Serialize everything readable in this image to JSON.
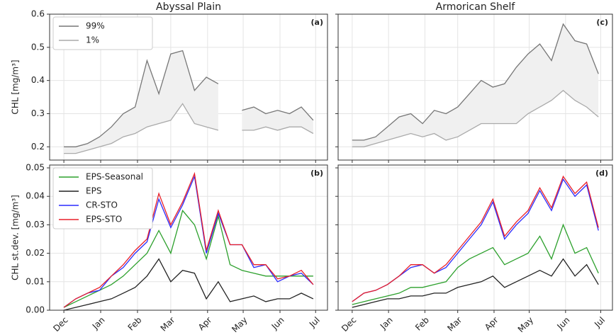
{
  "chart_data": [
    {
      "type": "line",
      "title": "Abyssal Plain",
      "label": "(a)",
      "ylabel": "CHL [mg/m³]",
      "fill_between": true,
      "legend": "upper left",
      "grid": true,
      "x": [
        0,
        10,
        20,
        30,
        40,
        50,
        60,
        70,
        80,
        90,
        100,
        110,
        120,
        130,
        140,
        150,
        160,
        170,
        180,
        190,
        200,
        210
      ],
      "xlim": [
        -12,
        222
      ],
      "xticks": [
        0,
        31,
        62,
        90,
        121,
        151,
        182,
        212
      ],
      "ylim": [
        0.16,
        0.6
      ],
      "yticks": [
        0.2,
        0.3,
        0.4,
        0.5,
        0.6
      ],
      "series": [
        {
          "name": "99%",
          "color": "#777777",
          "values": [
            0.2,
            0.2,
            0.21,
            0.23,
            0.26,
            0.3,
            0.32,
            0.46,
            0.36,
            0.48,
            0.49,
            0.37,
            0.41,
            0.39,
            null,
            0.31,
            0.32,
            0.3,
            0.31,
            0.3,
            0.32,
            0.28
          ]
        },
        {
          "name": "1%",
          "color": "#aaaaaa",
          "values": [
            0.18,
            0.18,
            0.19,
            0.2,
            0.21,
            0.23,
            0.24,
            0.26,
            0.27,
            0.28,
            0.33,
            0.27,
            0.26,
            0.25,
            null,
            0.25,
            0.25,
            0.26,
            0.25,
            0.26,
            0.26,
            0.24
          ]
        }
      ]
    },
    {
      "type": "line",
      "title": "Armorican Shelf",
      "label": "(c)",
      "fill_between": true,
      "grid": true,
      "x": [
        0,
        10,
        20,
        30,
        40,
        50,
        60,
        70,
        80,
        90,
        100,
        110,
        120,
        130,
        140,
        150,
        160,
        170,
        180,
        190,
        200,
        210
      ],
      "xlim": [
        -12,
        222
      ],
      "xticks": [
        0,
        31,
        62,
        90,
        121,
        151,
        182,
        212
      ],
      "ylim": [
        0.16,
        0.6
      ],
      "yticks": [
        0.2,
        0.3,
        0.4,
        0.5,
        0.6
      ],
      "series": [
        {
          "color": "#777777",
          "values": [
            0.22,
            0.22,
            0.23,
            0.26,
            0.29,
            0.3,
            0.27,
            0.31,
            0.3,
            0.32,
            0.36,
            0.4,
            0.38,
            0.39,
            0.44,
            0.48,
            0.51,
            0.46,
            0.57,
            0.52,
            0.51,
            0.42
          ]
        },
        {
          "color": "#aaaaaa",
          "values": [
            0.2,
            0.2,
            0.21,
            0.22,
            0.23,
            0.24,
            0.23,
            0.24,
            0.22,
            0.23,
            0.25,
            0.27,
            0.27,
            0.27,
            0.27,
            0.3,
            0.32,
            0.34,
            0.37,
            0.34,
            0.32,
            0.29
          ]
        }
      ]
    },
    {
      "type": "line",
      "label": "(b)",
      "ylabel": "CHL st.dev. [mg/m³]",
      "legend": "upper left",
      "grid": true,
      "x": [
        0,
        10,
        20,
        30,
        40,
        50,
        60,
        70,
        80,
        90,
        100,
        110,
        120,
        130,
        140,
        150,
        160,
        170,
        180,
        190,
        200,
        210
      ],
      "xlim": [
        -12,
        222
      ],
      "xticks": [
        {
          "value": 0,
          "label": "Dec"
        },
        {
          "value": 31,
          "label": "Jan"
        },
        {
          "value": 62,
          "label": "Feb"
        },
        {
          "value": 90,
          "label": "Mar"
        },
        {
          "value": 121,
          "label": "Apr"
        },
        {
          "value": 151,
          "label": "May"
        },
        {
          "value": 182,
          "label": "Jun"
        },
        {
          "value": 212,
          "label": "Jul"
        }
      ],
      "ylim": [
        0,
        0.051
      ],
      "yticks": [
        {
          "value": 0,
          "label": "0.00"
        },
        {
          "value": 0.01,
          "label": "0.01"
        },
        {
          "value": 0.02,
          "label": "0.02"
        },
        {
          "value": 0.03,
          "label": "0.03"
        },
        {
          "value": 0.04,
          "label": "0.04"
        },
        {
          "value": 0.05,
          "label": "0.05"
        }
      ],
      "series": [
        {
          "name": "EPS-Seasonal",
          "color": "#2ca02c",
          "values": [
            0.001,
            0.003,
            0.005,
            0.007,
            0.009,
            0.012,
            0.016,
            0.02,
            0.028,
            0.02,
            0.035,
            0.03,
            0.018,
            0.033,
            0.016,
            0.014,
            0.013,
            0.012,
            0.012,
            0.012,
            0.012,
            0.012
          ]
        },
        {
          "name": "EPS",
          "color": "#222222",
          "values": [
            0.0,
            0.001,
            0.002,
            0.003,
            0.004,
            0.006,
            0.008,
            0.012,
            0.018,
            0.01,
            0.014,
            0.013,
            0.004,
            0.01,
            0.003,
            0.004,
            0.005,
            0.003,
            0.004,
            0.004,
            0.006,
            0.004
          ]
        },
        {
          "name": "CR-STO",
          "color": "#2b2bff",
          "values": [
            0.001,
            0.004,
            0.006,
            0.007,
            0.012,
            0.015,
            0.02,
            0.024,
            0.039,
            0.029,
            0.037,
            0.047,
            0.02,
            0.034,
            0.023,
            0.023,
            0.015,
            0.016,
            0.01,
            0.012,
            0.013,
            0.009
          ]
        },
        {
          "name": "EPS-STO",
          "color": "#e8202a",
          "values": [
            0.001,
            0.004,
            0.006,
            0.008,
            0.012,
            0.016,
            0.021,
            0.025,
            0.041,
            0.03,
            0.038,
            0.048,
            0.021,
            0.035,
            0.023,
            0.023,
            0.016,
            0.016,
            0.011,
            0.012,
            0.014,
            0.009
          ]
        }
      ]
    },
    {
      "type": "line",
      "label": "(d)",
      "grid": true,
      "x": [
        0,
        10,
        20,
        30,
        40,
        50,
        60,
        70,
        80,
        90,
        100,
        110,
        120,
        130,
        140,
        150,
        160,
        170,
        180,
        190,
        200,
        210
      ],
      "xlim": [
        -12,
        222
      ],
      "xticks": [
        {
          "value": 0,
          "label": "Dec"
        },
        {
          "value": 31,
          "label": "Jan"
        },
        {
          "value": 62,
          "label": "Feb"
        },
        {
          "value": 90,
          "label": "Mar"
        },
        {
          "value": 121,
          "label": "Apr"
        },
        {
          "value": 151,
          "label": "May"
        },
        {
          "value": 182,
          "label": "Jun"
        },
        {
          "value": 212,
          "label": "Jul"
        }
      ],
      "ylim": [
        0,
        0.051
      ],
      "yticks": [
        0,
        0.01,
        0.02,
        0.03,
        0.04,
        0.05
      ],
      "series": [
        {
          "color": "#2ca02c",
          "values": [
            0.002,
            0.003,
            0.004,
            0.005,
            0.006,
            0.008,
            0.008,
            0.009,
            0.01,
            0.015,
            0.018,
            0.02,
            0.022,
            0.016,
            0.018,
            0.02,
            0.026,
            0.018,
            0.03,
            0.02,
            0.022,
            0.013
          ]
        },
        {
          "color": "#222222",
          "values": [
            0.001,
            0.002,
            0.003,
            0.004,
            0.004,
            0.005,
            0.005,
            0.006,
            0.006,
            0.008,
            0.009,
            0.01,
            0.012,
            0.008,
            0.01,
            0.012,
            0.014,
            0.012,
            0.018,
            0.012,
            0.016,
            0.009
          ]
        },
        {
          "color": "#2b2bff",
          "values": [
            0.003,
            0.006,
            0.007,
            0.009,
            0.012,
            0.015,
            0.016,
            0.013,
            0.015,
            0.02,
            0.025,
            0.03,
            0.038,
            0.025,
            0.03,
            0.034,
            0.042,
            0.035,
            0.046,
            0.04,
            0.044,
            0.028
          ]
        },
        {
          "color": "#e8202a",
          "values": [
            0.003,
            0.006,
            0.007,
            0.009,
            0.012,
            0.016,
            0.016,
            0.013,
            0.016,
            0.021,
            0.026,
            0.031,
            0.039,
            0.026,
            0.031,
            0.035,
            0.043,
            0.036,
            0.047,
            0.041,
            0.045,
            0.029
          ]
        }
      ]
    }
  ]
}
